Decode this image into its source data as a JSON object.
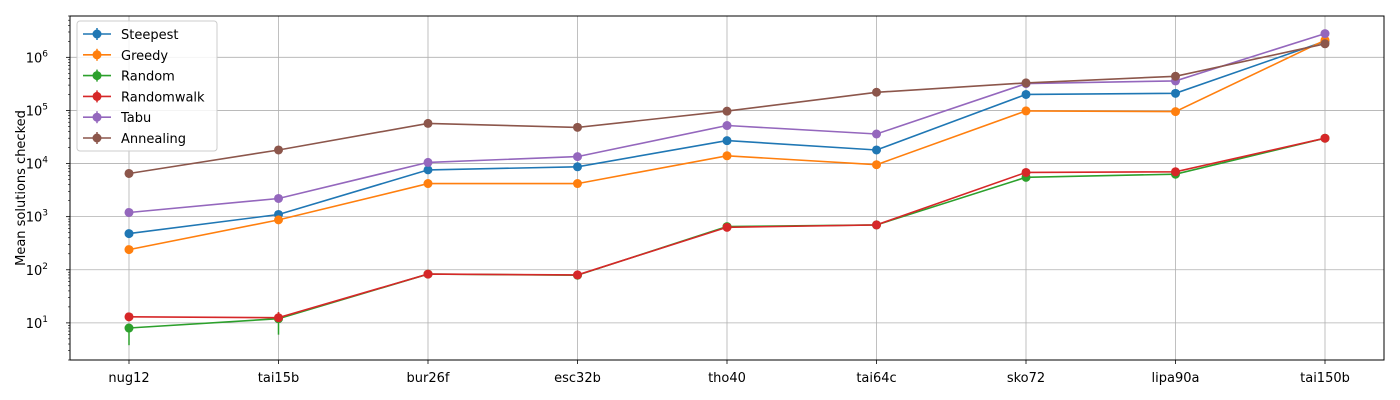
{
  "chart_data": {
    "type": "line",
    "title": "",
    "xlabel": "",
    "ylabel": "Mean solutions checked",
    "yscale": "log",
    "ylim": [
      2,
      6000000
    ],
    "grid": true,
    "legend_position": "top-left",
    "categories": [
      "nug12",
      "tai15b",
      "bur26f",
      "esc32b",
      "tho40",
      "tai64c",
      "sko72",
      "lipa90a",
      "tai150b"
    ],
    "y_ticks": [
      {
        "value": 10,
        "base": "10",
        "exp": "1"
      },
      {
        "value": 100,
        "base": "10",
        "exp": "2"
      },
      {
        "value": 1000,
        "base": "10",
        "exp": "3"
      },
      {
        "value": 10000,
        "base": "10",
        "exp": "4"
      },
      {
        "value": 100000,
        "base": "10",
        "exp": "5"
      },
      {
        "value": 1000000,
        "base": "10",
        "exp": "6"
      }
    ],
    "series": [
      {
        "name": "Steepest",
        "color": "#1f77b4",
        "values": [
          480,
          1100,
          7600,
          8700,
          27000,
          18000,
          200000,
          210000,
          2000000
        ]
      },
      {
        "name": "Greedy",
        "color": "#ff7f0e",
        "values": [
          240,
          870,
          4200,
          4200,
          14000,
          9500,
          98000,
          95000,
          2100000
        ]
      },
      {
        "name": "Random",
        "color": "#2ca02c",
        "values": [
          8,
          12,
          83,
          79,
          650,
          700,
          5500,
          6300,
          30000
        ]
      },
      {
        "name": "Randomwalk",
        "color": "#d62728",
        "values": [
          13,
          12.5,
          83,
          80,
          630,
          700,
          6800,
          7000,
          30000
        ]
      },
      {
        "name": "Tabu",
        "color": "#9467bd",
        "values": [
          1200,
          2200,
          10500,
          13500,
          52000,
          36000,
          320000,
          360000,
          2800000
        ]
      },
      {
        "name": "Annealing",
        "color": "#8c564b",
        "values": [
          6500,
          18000,
          57000,
          48000,
          97000,
          220000,
          330000,
          440000,
          1800000
        ]
      }
    ],
    "error_bars": [
      {
        "series": "Random",
        "category": "nug12",
        "low": 3.8,
        "high": 9
      },
      {
        "series": "Random",
        "category": "tai15b",
        "low": 6,
        "high": 16
      },
      {
        "series": "Randomwalk",
        "category": "tai15b",
        "low": 10,
        "high": 16
      }
    ]
  }
}
